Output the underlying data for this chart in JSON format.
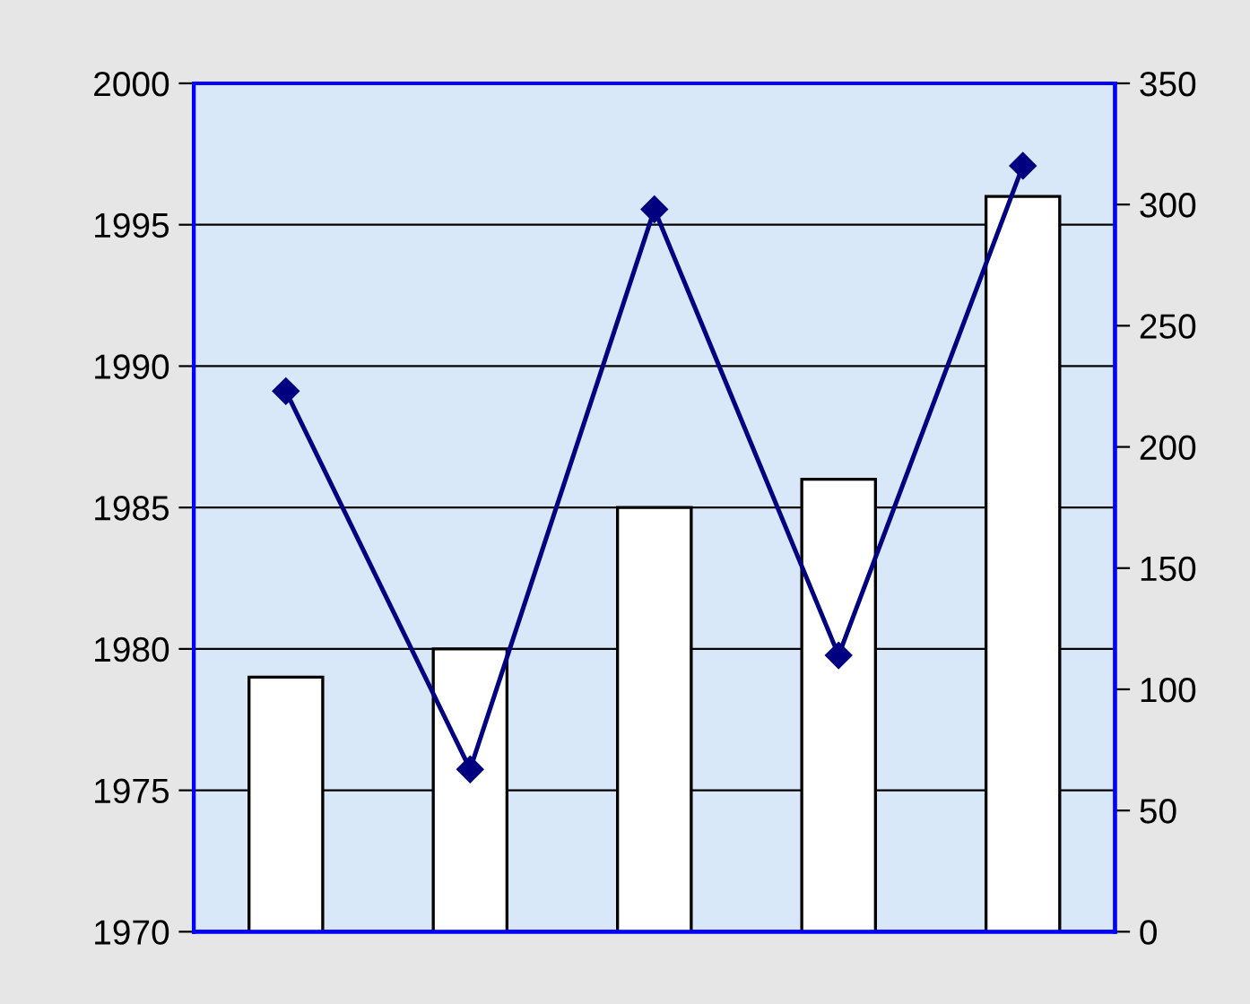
{
  "chart_data": {
    "type": "bar",
    "categories": [
      null,
      null,
      null,
      null,
      null
    ],
    "series": [
      {
        "color": "#ffffff",
        "values": [
          1979,
          1980,
          1985,
          1986,
          1996
        ]
      },
      {
        "type": "line",
        "axis": "y2",
        "color": "#000080",
        "marker": "diamond",
        "values": [
          223,
          67,
          298,
          114,
          316
        ]
      }
    ],
    "ylim": [
      1970,
      2000
    ],
    "yticks": [
      1970,
      1975,
      1980,
      1985,
      1990,
      1995,
      2000
    ],
    "y2lim": [
      0,
      350
    ],
    "y2ticks": [
      0,
      50,
      100,
      150,
      200,
      250,
      300,
      350
    ],
    "grid": "y",
    "legend": false
  }
}
